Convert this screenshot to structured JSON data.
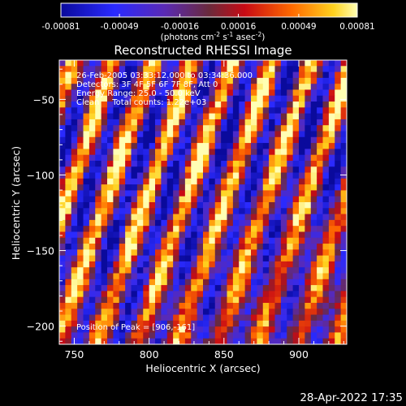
{
  "chart_data": {
    "type": "heatmap",
    "title": "Reconstructed RHESSI Image",
    "xlabel": "Heliocentric X (arcsec)",
    "ylabel": "Heliocentric Y (arcsec)",
    "xlim": [
      740,
      932
    ],
    "ylim": [
      -212,
      -24
    ],
    "xticks": [
      750,
      800,
      850,
      900
    ],
    "yticks": [
      -200,
      -150,
      -100,
      -50
    ],
    "colorbar": {
      "ticks": [
        "-0.00081",
        "-0.00049",
        "-0.00016",
        "0.00016",
        "0.00049",
        "0.00081"
      ],
      "range": [
        -0.00081,
        0.00081
      ],
      "label_main": "(photons cm",
      "label_exp1": "-2",
      "label_mid1": " s",
      "label_exp2": "-1",
      "label_mid2": " asec",
      "label_exp3": "-2",
      "label_end": ")"
    },
    "stripe_pattern": {
      "description": "diagonal fringe stripes of alternating positive and negative flux",
      "nx": 48,
      "ny": 48
    },
    "annotations": [
      "26-Feb-2005 03:33:12.000 to 03:34:36.000",
      "Detectors: 3F 4F 5F 6F 7F 8F, Att 0",
      "Energy Range: 25.0 - 50.0 keV",
      "Clean     Total counts: 1.22e+03"
    ],
    "peak_label": "Position of Peak = [906,-161]"
  },
  "timestamp": "28-Apr-2022 17:35"
}
